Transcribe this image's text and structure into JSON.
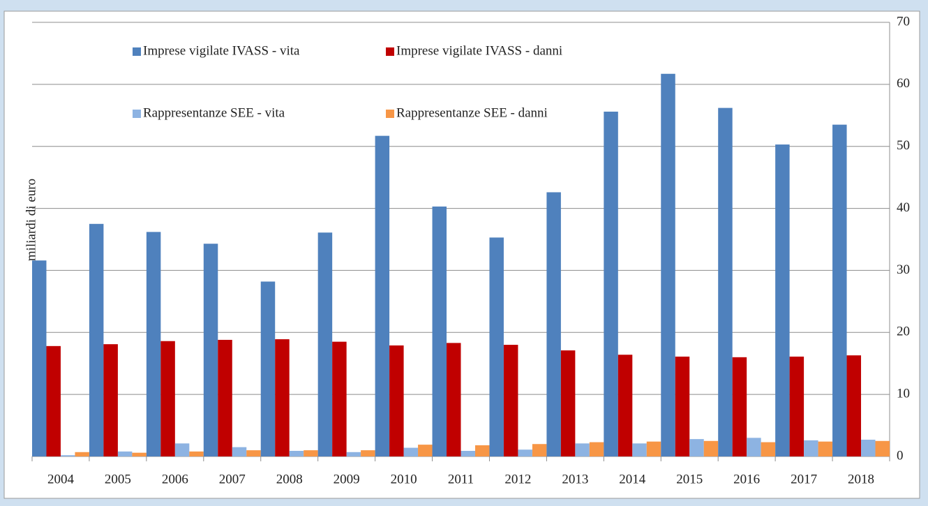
{
  "chart_data": {
    "type": "bar",
    "y_label": "miliardi di euro",
    "categories": [
      "2004",
      "2005",
      "2006",
      "2007",
      "2008",
      "2009",
      "2010",
      "2011",
      "2012",
      "2013",
      "2014",
      "2015",
      "2016",
      "2017",
      "2018"
    ],
    "series": [
      {
        "name": "Imprese vigilate IVASS - vita",
        "color": "#4f81bd",
        "values": [
          31.6,
          37.5,
          36.2,
          34.3,
          28.2,
          36.1,
          51.7,
          40.3,
          35.3,
          42.6,
          55.6,
          61.7,
          56.2,
          50.3,
          53.5
        ]
      },
      {
        "name": "Imprese vigilate IVASS - danni",
        "color": "#c00000",
        "values": [
          17.8,
          18.1,
          18.6,
          18.8,
          18.9,
          18.5,
          17.9,
          18.3,
          18.0,
          17.1,
          16.4,
          16.1,
          16.0,
          16.1,
          16.3
        ]
      },
      {
        "name": "Rappresentanze SEE - vita",
        "color": "#8db3e2",
        "values": [
          0.2,
          0.8,
          2.1,
          1.5,
          0.9,
          0.7,
          1.4,
          0.9,
          1.1,
          2.1,
          2.1,
          2.8,
          3.0,
          2.6,
          2.7
        ]
      },
      {
        "name": "Rappresentanze SEE - danni",
        "color": "#f79646",
        "values": [
          0.7,
          0.6,
          0.8,
          1.0,
          1.0,
          1.0,
          1.9,
          1.8,
          2.0,
          2.3,
          2.4,
          2.5,
          2.3,
          2.4,
          2.5
        ]
      }
    ],
    "ylim": [
      0,
      70
    ],
    "yticks": [
      0,
      10,
      20,
      30,
      40,
      50,
      60,
      70
    ],
    "y_axis_side": "right",
    "grid": true,
    "legend": "upper left"
  }
}
